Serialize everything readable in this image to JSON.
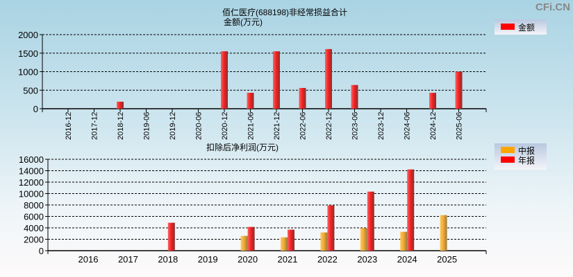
{
  "watermark": "CFi.CN",
  "colors": {
    "annual": "#ff0000",
    "interim": "#ffa500",
    "grid": "#000000"
  },
  "chart_data": [
    {
      "type": "bar",
      "title": "佰仁医疗(688198)非经常损益合计",
      "subtitle": "金额(万元)",
      "legend": [
        "金额"
      ],
      "legend_placement": "top-right",
      "categories": [
        "2016-12",
        "2017-12",
        "2018-12",
        "2019-06",
        "2019-12",
        "2020-06",
        "2020-12",
        "2021-06",
        "2021-12",
        "2022-06",
        "2022-12",
        "2023-06",
        "2023-12",
        "2024-06",
        "2024-12",
        "2025-06"
      ],
      "values": [
        0,
        0,
        190,
        0,
        0,
        0,
        1550,
        430,
        1550,
        560,
        1610,
        640,
        0,
        0,
        430,
        1000
      ],
      "yticks": [
        0,
        500,
        1000,
        1500,
        2000
      ],
      "ylim": [
        0,
        2000
      ],
      "grid": true
    },
    {
      "type": "bar",
      "title": "扣除后净利润(万元)",
      "legend_placement": "top-right",
      "categories": [
        "2016",
        "2017",
        "2018",
        "2019",
        "2020",
        "2021",
        "2022",
        "2023",
        "2024",
        "2025"
      ],
      "series": [
        {
          "name": "中报",
          "values": [
            null,
            null,
            null,
            null,
            2590,
            2340,
            3190,
            3960,
            3310,
            6220
          ]
        },
        {
          "name": "年报",
          "values": [
            null,
            null,
            4890,
            null,
            4160,
            3680,
            7920,
            10340,
            14220,
            null
          ]
        }
      ],
      "yticks": [
        0,
        2000,
        4000,
        6000,
        8000,
        10000,
        12000,
        14000,
        16000
      ],
      "ylim": [
        0,
        16000
      ],
      "grid": true
    }
  ]
}
